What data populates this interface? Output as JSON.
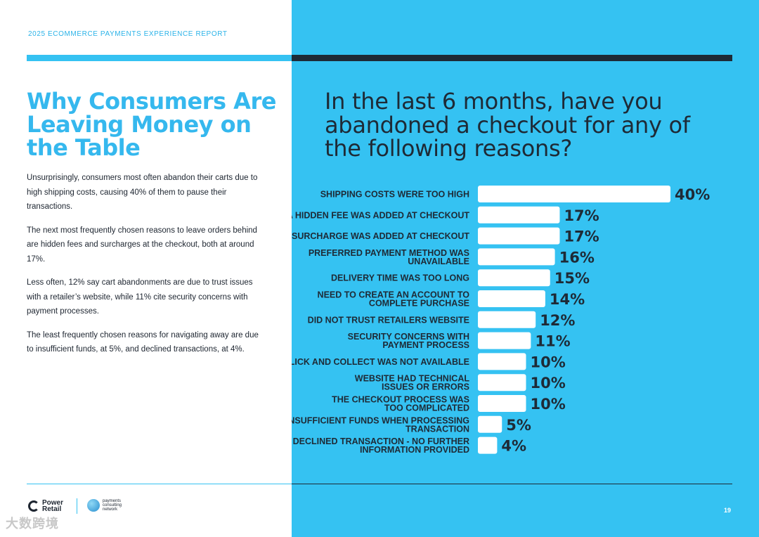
{
  "header": {
    "report_label": "2025 ECOMMERCE PAYMENTS EXPERIENCE REPORT"
  },
  "left": {
    "heading": "Why Consumers Are Leaving Money on the Table",
    "paragraphs": [
      "Unsurprisingly, consumers most often abandon their carts due to high shipping costs, causing 40% of them to pause their transactions.",
      "The next most frequently chosen reasons to leave orders behind are hidden fees and surcharges at the checkout, both at around 17%.",
      "Less often, 12% say cart abandonments are due to trust issues with a retailer’s website, while 11% cite security concerns with payment processes.",
      "The least frequently chosen reasons for navigating away are due to insufficient funds, at 5%, and declined transactions, at 4%."
    ]
  },
  "chart_data": {
    "type": "bar",
    "orientation": "horizontal",
    "title": "In the last 6 months, have you abandoned a checkout for any of the following reasons?",
    "categories": [
      [
        "SHIPPING COSTS WERE TOO HIGH"
      ],
      [
        "A HIDDEN FEE WAS ADDED AT CHECKOUT"
      ],
      [
        "A SURCHARGE WAS ADDED AT CHECKOUT"
      ],
      [
        "PREFERRED PAYMENT METHOD WAS",
        "UNAVAILABLE"
      ],
      [
        "DELIVERY TIME WAS TOO LONG"
      ],
      [
        "NEED TO CREATE AN ACCOUNT TO",
        "COMPLETE PURCHASE"
      ],
      [
        "DID NOT TRUST RETAILERS WEBSITE"
      ],
      [
        "SECURITY CONCERNS WITH",
        "PAYMENT PROCESS"
      ],
      [
        "CLICK AND COLLECT WAS NOT AVAILABLE"
      ],
      [
        "WEBSITE HAD TECHNICAL",
        "ISSUES OR ERRORS"
      ],
      [
        "THE CHECKOUT PROCESS WAS",
        "TOO COMPLICATED"
      ],
      [
        "INSUFFICIENT FUNDS WHEN PROCESSING",
        "TRANSACTION"
      ],
      [
        "DECLINED TRANSACTION - NO FURTHER",
        "INFORMATION PROVIDED"
      ]
    ],
    "values": [
      40,
      17,
      17,
      16,
      15,
      14,
      12,
      11,
      10,
      10,
      10,
      5,
      4
    ],
    "value_labels": [
      "40%",
      "17%",
      "17%",
      "16%",
      "15%",
      "14%",
      "12%",
      "11%",
      "10%",
      "10%",
      "10%",
      "5%",
      "4%"
    ],
    "unit": "%",
    "xlim": [
      0,
      40
    ],
    "bar_color": "#ffffff"
  },
  "footer": {
    "logo1": "Power Retail",
    "logo2": "payments consulting network",
    "page_number": "19"
  },
  "watermark": "大数跨境",
  "colors": {
    "accent": "#35c2f2",
    "dark": "#1e2a36"
  }
}
